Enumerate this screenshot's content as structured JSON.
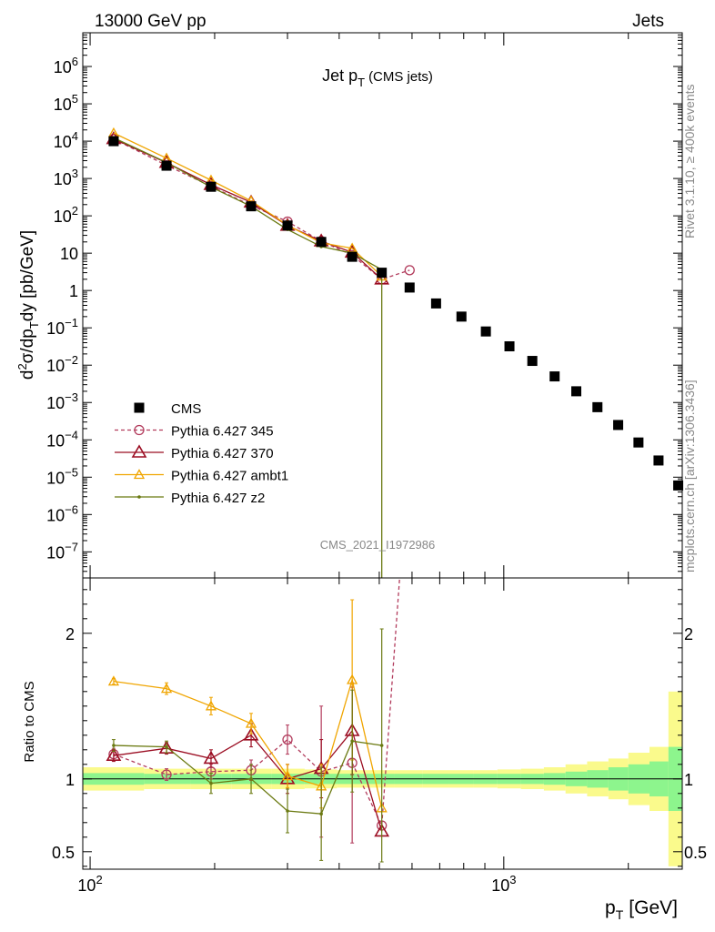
{
  "header": {
    "left": "13000 GeV pp",
    "right": "Jets"
  },
  "side_labels": {
    "rivet": "Rivet 3.1.10, ≥ 400k events",
    "mcplots": "mcplots.cern.ch [arXiv:1306.3436]"
  },
  "watermark": "CMS_2021_I1972986",
  "colors": {
    "cms": "#000000",
    "p345": "#b23b5c",
    "p370": "#9b0d22",
    "ambt1": "#f0a500",
    "z2": "#6b7a12",
    "band_inner": "#8df58d",
    "band_outer": "#fafa8c"
  },
  "chart_data": [
    {
      "type": "scatter",
      "title": "Jet p_T (CMS jets)",
      "title_main": "Jet p",
      "title_sub": "T",
      "title_extra": "(CMS jets)",
      "ylabel": "d²σ/dp_T dy [pb/GeV]",
      "xscale": "log",
      "yscale": "log",
      "xlim": [
        96,
        2700
      ],
      "ylim": [
        2e-08,
        8000000.0
      ],
      "y_ticks": [
        {
          "v": 1e-07,
          "base": "10",
          "exp": "−7"
        },
        {
          "v": 1e-06,
          "base": "10",
          "exp": "−6"
        },
        {
          "v": 1e-05,
          "base": "10",
          "exp": "−5"
        },
        {
          "v": 0.0001,
          "base": "10",
          "exp": "−4"
        },
        {
          "v": 0.001,
          "base": "10",
          "exp": "−3"
        },
        {
          "v": 0.01,
          "base": "10",
          "exp": "−2"
        },
        {
          "v": 0.1,
          "base": "10",
          "exp": "−1"
        },
        {
          "v": 1,
          "base": "1",
          "exp": ""
        },
        {
          "v": 10,
          "base": "10",
          "exp": ""
        },
        {
          "v": 100,
          "base": "10",
          "exp": "2"
        },
        {
          "v": 1000,
          "base": "10",
          "exp": "3"
        },
        {
          "v": 10000,
          "base": "10",
          "exp": "4"
        },
        {
          "v": 100000,
          "base": "10",
          "exp": "5"
        },
        {
          "v": 1000000,
          "base": "10",
          "exp": "6"
        }
      ],
      "legend": {
        "position": "bottom-left",
        "entries": [
          {
            "key": "cms",
            "label": "CMS"
          },
          {
            "key": "p345",
            "label": "Pythia 6.427 345"
          },
          {
            "key": "p370",
            "label": "Pythia 6.427 370"
          },
          {
            "key": "ambt1",
            "label": "Pythia 6.427 ambt1"
          },
          {
            "key": "z2",
            "label": "Pythia 6.427 z2"
          }
        ]
      },
      "series": [
        {
          "key": "cms",
          "name": "CMS",
          "marker": "square",
          "x": [
            114,
            153,
            196,
            245,
            300,
            362,
            430,
            507,
            592,
            686,
            790,
            905,
            1032,
            1172,
            1327,
            1497,
            1684,
            1890,
            2116,
            2366,
            2640
          ],
          "y": [
            10000,
            2200,
            600,
            180,
            55,
            20,
            8,
            3,
            1.2,
            0.45,
            0.2,
            0.08,
            0.032,
            0.013,
            0.005,
            0.002,
            0.00075,
            0.00025,
            8.5e-05,
            2.8e-05,
            6e-06
          ]
        },
        {
          "key": "p345",
          "name": "Pythia 6.427 345",
          "marker": "circle",
          "dashed": true,
          "x": [
            114,
            153,
            196,
            245,
            300,
            362,
            430,
            507,
            592
          ],
          "y": [
            11500,
            2250,
            620,
            190,
            70,
            21,
            8.8,
            2.0,
            3.5
          ]
        },
        {
          "key": "p370",
          "name": "Pythia 6.427 370",
          "marker": "triangle",
          "x": [
            114,
            153,
            196,
            245,
            300,
            362,
            430,
            507
          ],
          "y": [
            11500,
            2650,
            680,
            230,
            55,
            21,
            10.5,
            2.0
          ]
        },
        {
          "key": "ambt1",
          "name": "Pythia 6.427 ambt1",
          "marker": "triangle_small",
          "x": [
            114,
            153,
            196,
            245,
            300,
            362,
            430,
            507
          ],
          "y": [
            16500,
            3500,
            900,
            250,
            56,
            19,
            13.5,
            2.4
          ]
        },
        {
          "key": "z2",
          "name": "Pythia 6.427 z2",
          "marker": "dot",
          "x": [
            114,
            153,
            196,
            245,
            300,
            362,
            430,
            507
          ],
          "y": [
            12300,
            2700,
            590,
            180,
            43,
            15,
            10,
            3.6
          ],
          "drop_to_zero_at": 507
        }
      ]
    },
    {
      "type": "line",
      "ylabel": "Ratio to CMS",
      "xlabel_main": "p",
      "xlabel_sub": "T",
      "xlabel_unit": "[GeV]",
      "xscale": "log",
      "xlim": [
        96,
        2700
      ],
      "ylim": [
        0.38,
        2.38
      ],
      "y_ticks": [
        {
          "v": 0.5,
          "label": "0.5"
        },
        {
          "v": 1,
          "label": "1"
        },
        {
          "v": 2,
          "label": "2"
        }
      ],
      "x_ticks": [
        {
          "v": 100,
          "base": "10",
          "exp": "2"
        },
        {
          "v": 1000,
          "base": "10",
          "exp": "3"
        }
      ],
      "band": {
        "edges": [
          96,
          135,
          175,
          220,
          275,
          330,
          395,
          465,
          545,
          635,
          735,
          845,
          965,
          1100,
          1250,
          1410,
          1590,
          1790,
          2000,
          2250,
          2500,
          2700
        ],
        "inner": [
          0.04,
          0.035,
          0.035,
          0.035,
          0.035,
          0.035,
          0.035,
          0.035,
          0.035,
          0.035,
          0.035,
          0.035,
          0.035,
          0.035,
          0.04,
          0.05,
          0.06,
          0.08,
          0.1,
          0.12,
          0.22
        ],
        "outer": [
          0.08,
          0.07,
          0.07,
          0.07,
          0.07,
          0.065,
          0.06,
          0.06,
          0.06,
          0.06,
          0.06,
          0.06,
          0.065,
          0.07,
          0.08,
          0.1,
          0.12,
          0.14,
          0.18,
          0.22,
          0.6
        ]
      },
      "series": [
        {
          "key": "p345",
          "name": "Pythia 6.427 345",
          "marker": "circle",
          "dashed": true,
          "x": [
            114,
            153,
            196,
            245,
            300,
            362,
            430,
            507,
            560
          ],
          "y": [
            1.17,
            1.03,
            1.05,
            1.06,
            1.27,
            1.05,
            1.11,
            0.68,
            2.4
          ],
          "err": [
            0.04,
            0.04,
            0.05,
            0.07,
            0.1,
            0.45,
            0.55,
            0.0,
            0.0
          ]
        },
        {
          "key": "p370",
          "name": "Pythia 6.427 370",
          "marker": "triangle",
          "x": [
            114,
            153,
            196,
            245,
            300,
            362,
            430,
            507
          ],
          "y": [
            1.16,
            1.21,
            1.14,
            1.3,
            1.0,
            1.07,
            1.33,
            0.64
          ],
          "err": [
            0.04,
            0.04,
            0.06,
            0.08,
            0.1,
            0.2,
            0.3,
            0.0
          ]
        },
        {
          "key": "ambt1",
          "name": "Pythia 6.427 ambt1",
          "marker": "triangle_small",
          "x": [
            114,
            153,
            196,
            245,
            300,
            362,
            430,
            507
          ],
          "y": [
            1.67,
            1.62,
            1.5,
            1.38,
            1.02,
            0.95,
            1.68,
            0.8
          ],
          "err": [
            0.02,
            0.04,
            0.06,
            0.07,
            0.08,
            0.15,
            0.55,
            0.0
          ]
        },
        {
          "key": "z2",
          "name": "Pythia 6.427 z2",
          "marker": "dot",
          "x": [
            114,
            153,
            196,
            245,
            300,
            362,
            430,
            507
          ],
          "y": [
            1.23,
            1.22,
            0.97,
            1.0,
            0.78,
            0.76,
            1.26,
            1.23
          ],
          "err": [
            0.04,
            0.04,
            0.07,
            0.1,
            0.15,
            0.32,
            0.35,
            0.8
          ]
        }
      ]
    }
  ]
}
